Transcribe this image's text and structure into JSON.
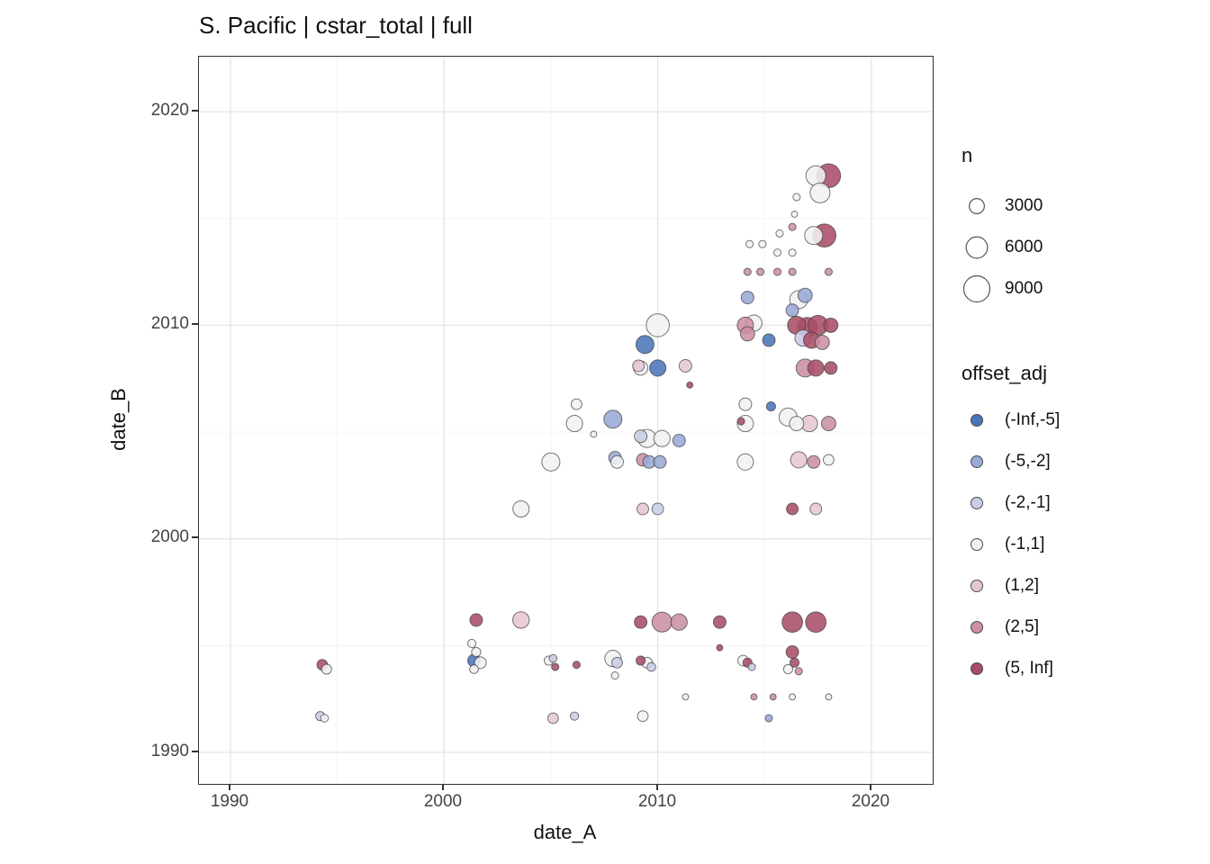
{
  "title": "S. Pacific | cstar_total | full",
  "axes": {
    "x": {
      "label": "date_A",
      "tick_labels": [
        "1990",
        "2000",
        "2010",
        "2020"
      ]
    },
    "y": {
      "label": "date_B",
      "tick_labels": [
        "1990",
        "2000",
        "2010",
        "2020"
      ]
    }
  },
  "legend_size": {
    "title": "n",
    "items": [
      {
        "label": "3000",
        "n": 3000
      },
      {
        "label": "6000",
        "n": 6000
      },
      {
        "label": "9000",
        "n": 9000
      }
    ]
  },
  "legend_color": {
    "title": "offset_adj",
    "items": [
      {
        "label": "(-Inf,-5]",
        "color": "#4a76b8"
      },
      {
        "label": "(-5,-2]",
        "color": "#9aa8d6"
      },
      {
        "label": "(-2,-1]",
        "color": "#c9cee6"
      },
      {
        "label": "(-1,1]",
        "color": "#f1f1f1"
      },
      {
        "label": "(1,2]",
        "color": "#e6c7d1"
      },
      {
        "label": "(2,5]",
        "color": "#cc8fa5"
      },
      {
        "label": "(5, Inf]",
        "color": "#a84e68"
      }
    ]
  },
  "chart_data": {
    "type": "scatter",
    "title": "S. Pacific | cstar_total | full",
    "xlabel": "date_A",
    "ylabel": "date_B",
    "xlim": [
      1988.5,
      2022.9
    ],
    "ylim": [
      1988.5,
      2022.6
    ],
    "grid": true,
    "x_ticks": [
      1990,
      2000,
      2010,
      2020
    ],
    "y_ticks": [
      1990,
      2000,
      2010,
      2020
    ],
    "x_minor": [
      1995,
      2005,
      2015
    ],
    "y_minor": [
      1995,
      2005,
      2015
    ],
    "size_name": "n",
    "size_breaks": [
      3000,
      6000,
      9000
    ],
    "color_name": "offset_adj",
    "categories": [
      "(-Inf,-5]",
      "(-5,-2]",
      "(-2,-1]",
      "(-1,1]",
      "(1,2]",
      "(2,5]",
      "(5, Inf]"
    ],
    "palette": [
      "#4a76b8",
      "#9aa8d6",
      "#c9cee6",
      "#f1f1f1",
      "#e6c7d1",
      "#cc8fa5",
      "#a84e68"
    ],
    "point_format": [
      "date_A",
      "date_B",
      "n",
      "category_index"
    ],
    "points": [
      [
        1994.3,
        1994.1,
        1500,
        6
      ],
      [
        1994.5,
        1993.9,
        1300,
        3
      ],
      [
        1994.2,
        1991.7,
        1100,
        2
      ],
      [
        1994.4,
        1991.6,
        800,
        3
      ],
      [
        2001.5,
        1996.2,
        2100,
        6
      ],
      [
        2001.3,
        1995.1,
        900,
        3
      ],
      [
        2001.5,
        1994.7,
        1100,
        3
      ],
      [
        2001.4,
        1994.3,
        2100,
        0
      ],
      [
        2001.7,
        1994.2,
        1800,
        3
      ],
      [
        2001.4,
        1993.9,
        1000,
        3
      ],
      [
        2003.6,
        1996.2,
        3600,
        4
      ],
      [
        2003.6,
        2001.4,
        3500,
        3
      ],
      [
        2005.0,
        2003.6,
        4300,
        3
      ],
      [
        2004.9,
        1994.3,
        1100,
        3
      ],
      [
        2005.1,
        1994.4,
        800,
        2
      ],
      [
        2005.2,
        1994.0,
        700,
        6
      ],
      [
        2005.1,
        1991.6,
        1500,
        4
      ],
      [
        2006.1,
        1991.7,
        900,
        2
      ],
      [
        2006.2,
        1994.1,
        700,
        6
      ],
      [
        2006.2,
        2006.3,
        1500,
        3
      ],
      [
        2006.1,
        2005.4,
        3500,
        3
      ],
      [
        2007.0,
        2004.9,
        500,
        3
      ],
      [
        2007.9,
        2005.6,
        4300,
        1
      ],
      [
        2008.0,
        2003.8,
        2100,
        1
      ],
      [
        2008.1,
        2003.6,
        2100,
        3
      ],
      [
        2007.9,
        1994.4,
        3500,
        3
      ],
      [
        2008.1,
        1994.2,
        1500,
        2
      ],
      [
        2008.0,
        1993.6,
        700,
        3
      ],
      [
        2009.4,
        2009.1,
        4300,
        0
      ],
      [
        2009.2,
        2008.0,
        2700,
        3
      ],
      [
        2009.1,
        2008.1,
        1800,
        4
      ],
      [
        2010.0,
        2008.0,
        3500,
        0
      ],
      [
        2011.3,
        2008.1,
        2100,
        4
      ],
      [
        2010.0,
        2010.0,
        7000,
        3
      ],
      [
        2011.5,
        2007.2,
        500,
        6
      ],
      [
        2009.5,
        2004.7,
        4300,
        3
      ],
      [
        2009.2,
        2004.8,
        2100,
        2
      ],
      [
        2010.2,
        2004.7,
        3500,
        3
      ],
      [
        2011.0,
        2004.6,
        2100,
        1
      ],
      [
        2009.3,
        2003.7,
        2100,
        5
      ],
      [
        2009.6,
        2003.6,
        2100,
        1
      ],
      [
        2010.1,
        2003.6,
        2100,
        1
      ],
      [
        2009.3,
        2001.4,
        1800,
        4
      ],
      [
        2010.0,
        2001.4,
        1800,
        2
      ],
      [
        2009.3,
        1991.7,
        1500,
        3
      ],
      [
        2009.2,
        1994.3,
        1100,
        6
      ],
      [
        2009.5,
        1994.2,
        1500,
        3
      ],
      [
        2009.7,
        1994.0,
        1000,
        2
      ],
      [
        2009.2,
        1996.1,
        2100,
        6
      ],
      [
        2010.2,
        1996.1,
        5200,
        5
      ],
      [
        2011.0,
        1996.1,
        3500,
        5
      ],
      [
        2011.3,
        1992.6,
        500,
        3
      ],
      [
        2012.9,
        1996.1,
        2100,
        6
      ],
      [
        2012.9,
        1994.9,
        500,
        6
      ],
      [
        2014.2,
        2011.3,
        2100,
        1
      ],
      [
        2014.5,
        2010.1,
        3500,
        3
      ],
      [
        2014.1,
        2010.0,
        3500,
        5
      ],
      [
        2014.2,
        2009.6,
        2700,
        5
      ],
      [
        2015.2,
        2009.3,
        2100,
        0
      ],
      [
        2014.2,
        2012.5,
        700,
        5
      ],
      [
        2014.8,
        2012.5,
        700,
        5
      ],
      [
        2014.3,
        2013.8,
        700,
        3
      ],
      [
        2014.9,
        2013.8,
        700,
        3
      ],
      [
        2015.6,
        2012.5,
        700,
        5
      ],
      [
        2016.3,
        2012.5,
        700,
        5
      ],
      [
        2018.0,
        2012.5,
        700,
        5
      ],
      [
        2015.6,
        2013.4,
        700,
        3
      ],
      [
        2016.3,
        2013.4,
        700,
        3
      ],
      [
        2015.7,
        2014.3,
        700,
        3
      ],
      [
        2016.3,
        2014.6,
        700,
        5
      ],
      [
        2016.5,
        2016.0,
        700,
        3
      ],
      [
        2016.4,
        2015.2,
        500,
        3
      ],
      [
        2017.4,
        2017.0,
        5200,
        3
      ],
      [
        2018.0,
        2017.0,
        7500,
        6
      ],
      [
        2017.6,
        2016.2,
        5200,
        3
      ],
      [
        2017.8,
        2014.2,
        7000,
        6
      ],
      [
        2017.3,
        2014.2,
        4300,
        3
      ],
      [
        2016.6,
        2011.2,
        4300,
        3
      ],
      [
        2016.9,
        2011.4,
        2700,
        1
      ],
      [
        2016.3,
        2010.7,
        2100,
        1
      ],
      [
        2016.5,
        2010.0,
        4300,
        6
      ],
      [
        2017.0,
        2009.9,
        5200,
        6
      ],
      [
        2017.5,
        2010.0,
        5200,
        6
      ],
      [
        2018.1,
        2010.0,
        2700,
        6
      ],
      [
        2016.8,
        2009.4,
        3500,
        2
      ],
      [
        2017.2,
        2009.3,
        3500,
        6
      ],
      [
        2017.7,
        2009.2,
        2700,
        5
      ],
      [
        2016.9,
        2008.0,
        4300,
        5
      ],
      [
        2017.4,
        2008.0,
        3500,
        6
      ],
      [
        2018.1,
        2008.0,
        2100,
        6
      ],
      [
        2016.1,
        2005.7,
        4300,
        3
      ],
      [
        2016.5,
        2005.4,
        2700,
        3
      ],
      [
        2017.1,
        2005.4,
        3500,
        4
      ],
      [
        2018.0,
        2005.4,
        2700,
        5
      ],
      [
        2016.6,
        2003.7,
        3500,
        4
      ],
      [
        2017.3,
        2003.6,
        2100,
        5
      ],
      [
        2018.0,
        2003.7,
        1500,
        3
      ],
      [
        2016.3,
        2001.4,
        1800,
        6
      ],
      [
        2017.4,
        2001.4,
        1800,
        4
      ],
      [
        2014.1,
        2006.3,
        2100,
        3
      ],
      [
        2015.3,
        2006.2,
        1100,
        0
      ],
      [
        2014.1,
        2005.4,
        3500,
        3
      ],
      [
        2013.9,
        2005.5,
        700,
        6
      ],
      [
        2014.1,
        2003.6,
        3500,
        3
      ],
      [
        2014.2,
        1994.2,
        1100,
        6
      ],
      [
        2014.0,
        1994.3,
        1500,
        3
      ],
      [
        2014.4,
        1994.0,
        700,
        2
      ],
      [
        2014.5,
        1992.6,
        500,
        5
      ],
      [
        2015.4,
        1992.6,
        500,
        5
      ],
      [
        2016.3,
        1992.6,
        500,
        3
      ],
      [
        2018.0,
        1992.6,
        500,
        3
      ],
      [
        2015.2,
        1991.6,
        700,
        1
      ],
      [
        2016.3,
        1996.1,
        5500,
        6
      ],
      [
        2017.4,
        1996.1,
        5500,
        6
      ],
      [
        2016.3,
        1994.7,
        2100,
        6
      ],
      [
        2016.4,
        1994.2,
        1100,
        6
      ],
      [
        2016.1,
        1993.9,
        1100,
        3
      ],
      [
        2016.6,
        1993.8,
        700,
        5
      ]
    ]
  }
}
